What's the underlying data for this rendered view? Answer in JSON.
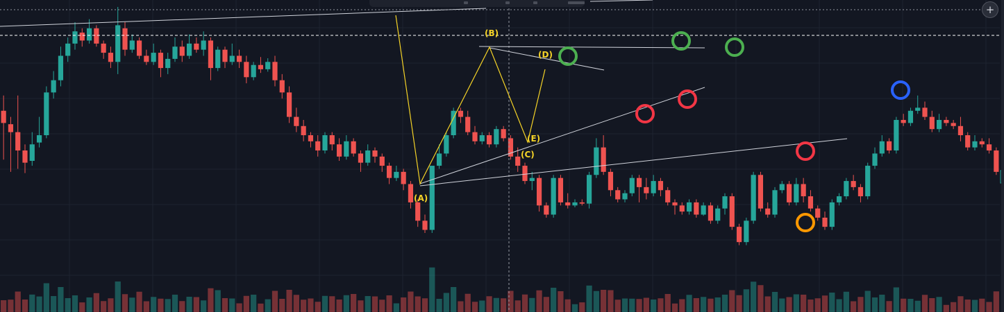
{
  "toolbar": {
    "add_label": "+"
  },
  "chart_data": {
    "type": "candlestick",
    "colors": {
      "up": "#26a69a",
      "down": "#ef5350",
      "background": "#131722",
      "grid": "#1e2330"
    },
    "candles": [
      [
        250,
        230,
        170,
        275
      ],
      [
        228,
        215,
        150,
        240
      ],
      [
        215,
        185,
        155,
        275
      ],
      [
        185,
        165,
        148,
        195
      ],
      [
        168,
        195,
        160,
        215
      ],
      [
        198,
        210,
        190,
        240
      ],
      [
        210,
        280,
        205,
        290
      ],
      [
        280,
        300,
        270,
        315
      ],
      [
        300,
        340,
        290,
        355
      ],
      [
        340,
        360,
        330,
        370
      ],
      [
        360,
        380,
        350,
        395
      ],
      [
        378,
        365,
        355,
        385
      ],
      [
        365,
        385,
        360,
        400
      ],
      [
        385,
        360,
        355,
        390
      ],
      [
        360,
        345,
        335,
        365
      ],
      [
        345,
        330,
        320,
        355
      ],
      [
        330,
        390,
        310,
        420
      ],
      [
        385,
        350,
        340,
        395
      ],
      [
        350,
        365,
        345,
        375
      ],
      [
        365,
        340,
        335,
        370
      ],
      [
        340,
        330,
        325,
        350
      ],
      [
        330,
        345,
        325,
        360
      ],
      [
        345,
        320,
        305,
        350
      ],
      [
        320,
        335,
        310,
        345
      ],
      [
        335,
        355,
        330,
        370
      ],
      [
        355,
        340,
        330,
        365
      ],
      [
        340,
        360,
        335,
        375
      ],
      [
        360,
        350,
        345,
        370
      ],
      [
        350,
        365,
        340,
        380
      ],
      [
        365,
        320,
        300,
        370
      ],
      [
        320,
        350,
        315,
        355
      ],
      [
        350,
        330,
        320,
        355
      ],
      [
        330,
        340,
        325,
        360
      ],
      [
        340,
        330,
        320,
        350
      ],
      [
        330,
        305,
        295,
        340
      ],
      [
        305,
        325,
        300,
        330
      ],
      [
        325,
        318,
        312,
        338
      ],
      [
        318,
        330,
        314,
        336
      ],
      [
        330,
        300,
        290,
        340
      ],
      [
        300,
        280,
        270,
        310
      ],
      [
        280,
        240,
        230,
        290
      ],
      [
        240,
        225,
        215,
        255
      ],
      [
        225,
        210,
        200,
        235
      ],
      [
        210,
        200,
        190,
        215
      ],
      [
        200,
        185,
        175,
        210
      ],
      [
        185,
        210,
        180,
        215
      ],
      [
        210,
        195,
        185,
        215
      ],
      [
        195,
        175,
        168,
        205
      ],
      [
        175,
        200,
        170,
        210
      ],
      [
        200,
        180,
        175,
        205
      ],
      [
        180,
        165,
        150,
        185
      ],
      [
        165,
        185,
        160,
        195
      ],
      [
        185,
        175,
        165,
        190
      ],
      [
        175,
        160,
        150,
        180
      ],
      [
        160,
        140,
        130,
        165
      ],
      [
        140,
        150,
        135,
        160
      ],
      [
        150,
        130,
        120,
        155
      ],
      [
        130,
        100,
        90,
        135
      ],
      [
        100,
        70,
        60,
        105
      ],
      [
        70,
        55,
        50,
        80
      ],
      [
        55,
        160,
        50,
        160
      ],
      [
        160,
        180,
        155,
        195
      ],
      [
        180,
        210,
        175,
        215
      ],
      [
        210,
        250,
        205,
        255
      ],
      [
        250,
        240,
        230,
        255
      ],
      [
        240,
        215,
        210,
        250
      ],
      [
        215,
        200,
        195,
        225
      ],
      [
        200,
        210,
        195,
        215
      ],
      [
        210,
        195,
        190,
        215
      ],
      [
        195,
        220,
        190,
        225
      ],
      [
        220,
        205,
        200,
        225
      ],
      [
        205,
        175,
        170,
        210
      ],
      [
        175,
        160,
        150,
        190
      ],
      [
        160,
        135,
        130,
        165
      ],
      [
        135,
        140,
        120,
        150
      ],
      [
        140,
        95,
        85,
        145
      ],
      [
        95,
        80,
        75,
        100
      ],
      [
        80,
        140,
        75,
        145
      ],
      [
        140,
        100,
        95,
        145
      ],
      [
        100,
        95,
        90,
        115
      ],
      [
        95,
        100,
        92,
        105
      ],
      [
        100,
        98,
        95,
        105
      ],
      [
        98,
        145,
        90,
        150
      ],
      [
        145,
        190,
        140,
        205
      ],
      [
        190,
        150,
        145,
        210
      ],
      [
        150,
        120,
        110,
        155
      ],
      [
        120,
        105,
        100,
        125
      ],
      [
        105,
        115,
        100,
        120
      ],
      [
        115,
        140,
        110,
        145
      ],
      [
        140,
        125,
        100,
        145
      ],
      [
        125,
        115,
        105,
        140
      ],
      [
        115,
        135,
        110,
        145
      ],
      [
        135,
        120,
        110,
        140
      ],
      [
        120,
        100,
        95,
        125
      ],
      [
        100,
        95,
        80,
        105
      ],
      [
        95,
        85,
        80,
        100
      ],
      [
        85,
        100,
        80,
        105
      ],
      [
        100,
        80,
        75,
        105
      ],
      [
        80,
        95,
        78,
        100
      ],
      [
        95,
        70,
        65,
        100
      ],
      [
        70,
        90,
        65,
        95
      ],
      [
        90,
        110,
        80,
        115
      ],
      [
        110,
        60,
        55,
        115
      ],
      [
        60,
        35,
        30,
        65
      ],
      [
        35,
        70,
        30,
        75
      ],
      [
        70,
        145,
        65,
        150
      ],
      [
        145,
        90,
        85,
        150
      ],
      [
        90,
        80,
        75,
        100
      ],
      [
        80,
        120,
        75,
        125
      ],
      [
        120,
        130,
        115,
        135
      ],
      [
        130,
        100,
        95,
        135
      ],
      [
        100,
        130,
        95,
        140
      ],
      [
        130,
        110,
        100,
        140
      ],
      [
        110,
        90,
        85,
        120
      ],
      [
        90,
        75,
        70,
        95
      ],
      [
        75,
        60,
        55,
        85
      ],
      [
        60,
        100,
        55,
        105
      ],
      [
        100,
        110,
        95,
        115
      ],
      [
        110,
        135,
        105,
        140
      ],
      [
        135,
        125,
        120,
        145
      ],
      [
        125,
        110,
        100,
        130
      ],
      [
        110,
        160,
        105,
        165
      ],
      [
        160,
        180,
        155,
        190
      ],
      [
        180,
        200,
        175,
        210
      ],
      [
        200,
        185,
        180,
        205
      ],
      [
        185,
        235,
        180,
        240
      ],
      [
        235,
        230,
        225,
        245
      ],
      [
        230,
        250,
        225,
        255
      ],
      [
        250,
        255,
        245,
        275
      ],
      [
        255,
        240,
        235,
        265
      ],
      [
        240,
        220,
        215,
        250
      ],
      [
        220,
        235,
        215,
        245
      ],
      [
        235,
        230,
        225,
        240
      ],
      [
        230,
        225,
        220,
        235
      ],
      [
        225,
        210,
        200,
        240
      ],
      [
        210,
        190,
        185,
        215
      ],
      [
        190,
        200,
        185,
        210
      ],
      [
        200,
        195,
        190,
        205
      ],
      [
        195,
        185,
        180,
        205
      ],
      [
        185,
        150,
        145,
        190
      ]
    ],
    "volume_scale": "relative"
  }
}
